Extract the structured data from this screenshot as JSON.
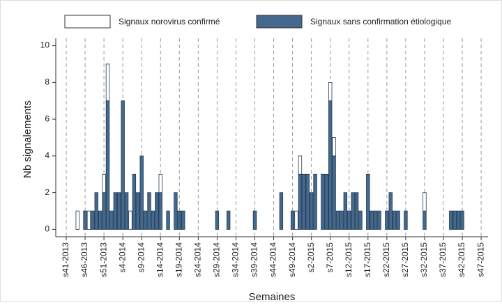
{
  "chart_data": {
    "type": "stacked_bar",
    "x_label": "Semaines",
    "y_label": "Nb signalements",
    "categories": [
      "s41-2013",
      null,
      null,
      null,
      null,
      "s46-2013",
      null,
      null,
      null,
      null,
      "s51-2013",
      null,
      null,
      null,
      null,
      "s4-2014",
      null,
      null,
      null,
      null,
      "s9-2014",
      null,
      null,
      null,
      null,
      "s14-2014",
      null,
      null,
      null,
      null,
      "s19-2014",
      null,
      null,
      null,
      null,
      "s24-2014",
      null,
      null,
      null,
      null,
      "s29-2014",
      null,
      null,
      null,
      null,
      "s34-2014",
      null,
      null,
      null,
      null,
      "s39-2014",
      null,
      null,
      null,
      null,
      "s44-2014",
      null,
      null,
      null,
      null,
      "s49-2014",
      null,
      null,
      null,
      null,
      "s2-2015",
      null,
      null,
      null,
      null,
      "s7-2015",
      null,
      null,
      null,
      null,
      "s12-2015",
      null,
      null,
      null,
      null,
      "s17-2015",
      null,
      null,
      null,
      null,
      "s22-2015",
      null,
      null,
      null,
      null,
      "s27-2015",
      null,
      null,
      null,
      null,
      "s32-2015",
      null,
      null,
      null,
      null,
      "s37-2015",
      null,
      null,
      null,
      null,
      "s42-2015",
      null,
      null,
      null,
      null,
      "s47-2015"
    ],
    "series": [
      {
        "name": "Signaux sans confirmation étiologique",
        "color": "#45698c",
        "values": [
          0,
          0,
          0,
          0,
          0,
          1,
          0,
          1,
          2,
          1,
          2,
          7,
          1,
          2,
          2,
          7,
          2,
          0,
          3,
          2,
          4,
          1,
          2,
          1,
          2,
          2,
          0,
          1,
          0,
          2,
          1,
          1,
          0,
          0,
          0,
          0,
          0,
          0,
          0,
          0,
          1,
          0,
          0,
          1,
          0,
          0,
          0,
          0,
          0,
          0,
          1,
          0,
          0,
          0,
          0,
          0,
          0,
          2,
          0,
          0,
          1,
          0,
          3,
          3,
          3,
          2,
          3,
          0,
          3,
          3,
          7,
          4,
          1,
          1,
          2,
          1,
          2,
          2,
          1,
          0,
          3,
          1,
          1,
          1,
          0,
          1,
          2,
          1,
          1,
          0,
          1,
          0,
          0,
          0,
          0,
          1,
          0,
          0,
          0,
          0,
          0,
          0,
          1,
          1,
          1,
          1,
          0,
          0,
          0,
          0,
          0
        ]
      },
      {
        "name": "Signaux norovirus confirmé",
        "color": "#ffffff",
        "values": [
          0,
          0,
          0,
          1,
          0,
          0,
          1,
          0,
          0,
          0,
          1,
          2,
          0,
          0,
          0,
          0,
          0,
          1,
          0,
          0,
          0,
          0,
          0,
          0,
          0,
          1,
          0,
          0,
          0,
          0,
          0,
          0,
          0,
          0,
          0,
          0,
          0,
          0,
          0,
          0,
          0,
          0,
          0,
          0,
          0,
          0,
          0,
          0,
          0,
          0,
          0,
          0,
          0,
          0,
          0,
          0,
          0,
          0,
          0,
          0,
          0,
          1,
          1,
          0,
          0,
          0,
          0,
          0,
          0,
          0,
          1,
          1,
          0,
          0,
          0,
          0,
          0,
          0,
          0,
          0,
          0,
          0,
          0,
          0,
          0,
          0,
          0,
          0,
          0,
          0,
          0,
          0,
          0,
          0,
          0,
          1,
          0,
          0,
          0,
          0,
          0,
          0,
          0,
          0,
          0,
          0,
          0,
          0,
          0,
          0,
          0
        ]
      }
    ],
    "ylim": [
      -0.4,
      10.4
    ],
    "yticks": [
      0,
      2,
      4,
      6,
      8,
      10
    ],
    "grid": true
  }
}
